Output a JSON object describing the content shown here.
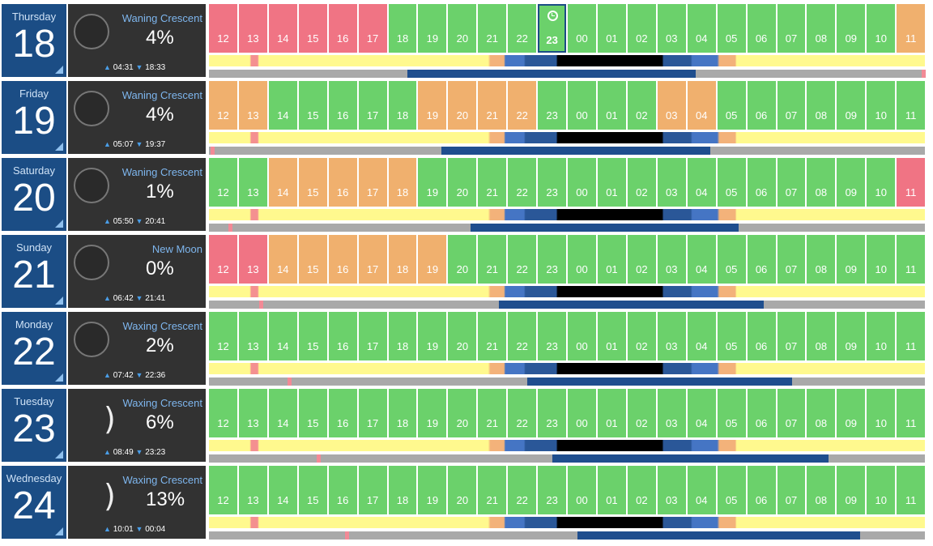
{
  "hours": [
    "12",
    "13",
    "14",
    "15",
    "16",
    "17",
    "18",
    "19",
    "20",
    "21",
    "22",
    "23",
    "00",
    "01",
    "02",
    "03",
    "04",
    "05",
    "06",
    "07",
    "08",
    "09",
    "10",
    "11"
  ],
  "colors": {
    "good": "#6bd16b",
    "fair": "#f0b06e",
    "poor": "#f07484",
    "date_bg": "#1b4d85",
    "moon_bg": "#323232"
  },
  "days": [
    {
      "day_name": "Thursday",
      "day_num": "18",
      "phase": "Waning Crescent",
      "illumination": "4%",
      "moon_icon": "moon-disc-icon",
      "moonrise": "04:31",
      "moonset": "18:33",
      "hour_ratings": [
        "poor",
        "poor",
        "poor",
        "poor",
        "poor",
        "poor",
        "good",
        "good",
        "good",
        "good",
        "good",
        "good",
        "good",
        "good",
        "good",
        "good",
        "good",
        "good",
        "good",
        "good",
        "good",
        "good",
        "good",
        "fair"
      ],
      "current_hour_index": 11,
      "moon_up": [
        0,
        0.3
      ]
    },
    {
      "day_name": "Friday",
      "day_num": "19",
      "phase": "Waning Crescent",
      "illumination": "4%",
      "moon_icon": "moon-disc-icon",
      "moonrise": "05:07",
      "moonset": "19:37",
      "hour_ratings": [
        "fair",
        "fair",
        "good",
        "good",
        "good",
        "good",
        "good",
        "fair",
        "fair",
        "fair",
        "fair",
        "good",
        "good",
        "good",
        "good",
        "fair",
        "fair",
        "good",
        "good",
        "good",
        "good",
        "good",
        "good",
        "good"
      ],
      "current_hour_index": -1,
      "moon_up": [
        0,
        0.3
      ]
    },
    {
      "day_name": "Saturday",
      "day_num": "20",
      "phase": "Waning Crescent",
      "illumination": "1%",
      "moon_icon": "moon-disc-icon",
      "moonrise": "05:50",
      "moonset": "20:41",
      "hour_ratings": [
        "good",
        "good",
        "fair",
        "fair",
        "fair",
        "fair",
        "fair",
        "good",
        "good",
        "good",
        "good",
        "good",
        "good",
        "good",
        "good",
        "good",
        "good",
        "good",
        "good",
        "good",
        "good",
        "good",
        "good",
        "poor"
      ],
      "current_hour_index": -1,
      "moon_up": [
        0,
        0.3
      ]
    },
    {
      "day_name": "Sunday",
      "day_num": "21",
      "phase": "New Moon",
      "illumination": "0%",
      "moon_icon": "moon-disc-icon",
      "moonrise": "06:42",
      "moonset": "21:41",
      "hour_ratings": [
        "poor",
        "poor",
        "fair",
        "fair",
        "fair",
        "fair",
        "fair",
        "fair",
        "good",
        "good",
        "good",
        "good",
        "good",
        "good",
        "good",
        "good",
        "good",
        "good",
        "good",
        "good",
        "good",
        "good",
        "good",
        "good"
      ],
      "current_hour_index": -1,
      "moon_up": [
        0,
        0.3
      ]
    },
    {
      "day_name": "Monday",
      "day_num": "22",
      "phase": "Waxing Crescent",
      "illumination": "2%",
      "moon_icon": "moon-disc-icon",
      "moonrise": "07:42",
      "moonset": "22:36",
      "hour_ratings": [
        "good",
        "good",
        "good",
        "good",
        "good",
        "good",
        "good",
        "good",
        "good",
        "good",
        "good",
        "good",
        "good",
        "good",
        "good",
        "good",
        "good",
        "good",
        "good",
        "good",
        "good",
        "good",
        "good",
        "good"
      ],
      "current_hour_index": -1,
      "moon_up": [
        0,
        0.3
      ]
    },
    {
      "day_name": "Tuesday",
      "day_num": "23",
      "phase": "Waxing Crescent",
      "illumination": "6%",
      "moon_icon": "moon-crescent-icon",
      "moonrise": "08:49",
      "moonset": "23:23",
      "hour_ratings": [
        "good",
        "good",
        "good",
        "good",
        "good",
        "good",
        "good",
        "good",
        "good",
        "good",
        "good",
        "good",
        "good",
        "good",
        "good",
        "good",
        "good",
        "good",
        "good",
        "good",
        "good",
        "good",
        "good",
        "good"
      ],
      "current_hour_index": -1,
      "moon_up": [
        0,
        0.3
      ]
    },
    {
      "day_name": "Wednesday",
      "day_num": "24",
      "phase": "Waxing Crescent",
      "illumination": "13%",
      "moon_icon": "moon-crescent-icon",
      "moonrise": "10:01",
      "moonset": "00:04",
      "hour_ratings": [
        "good",
        "good",
        "good",
        "good",
        "good",
        "good",
        "good",
        "good",
        "good",
        "good",
        "good",
        "good",
        "good",
        "good",
        "good",
        "good",
        "good",
        "good",
        "good",
        "good",
        "good",
        "good",
        "good",
        "good"
      ],
      "current_hour_index": -1,
      "moon_up": [
        0,
        0.3
      ]
    }
  ]
}
